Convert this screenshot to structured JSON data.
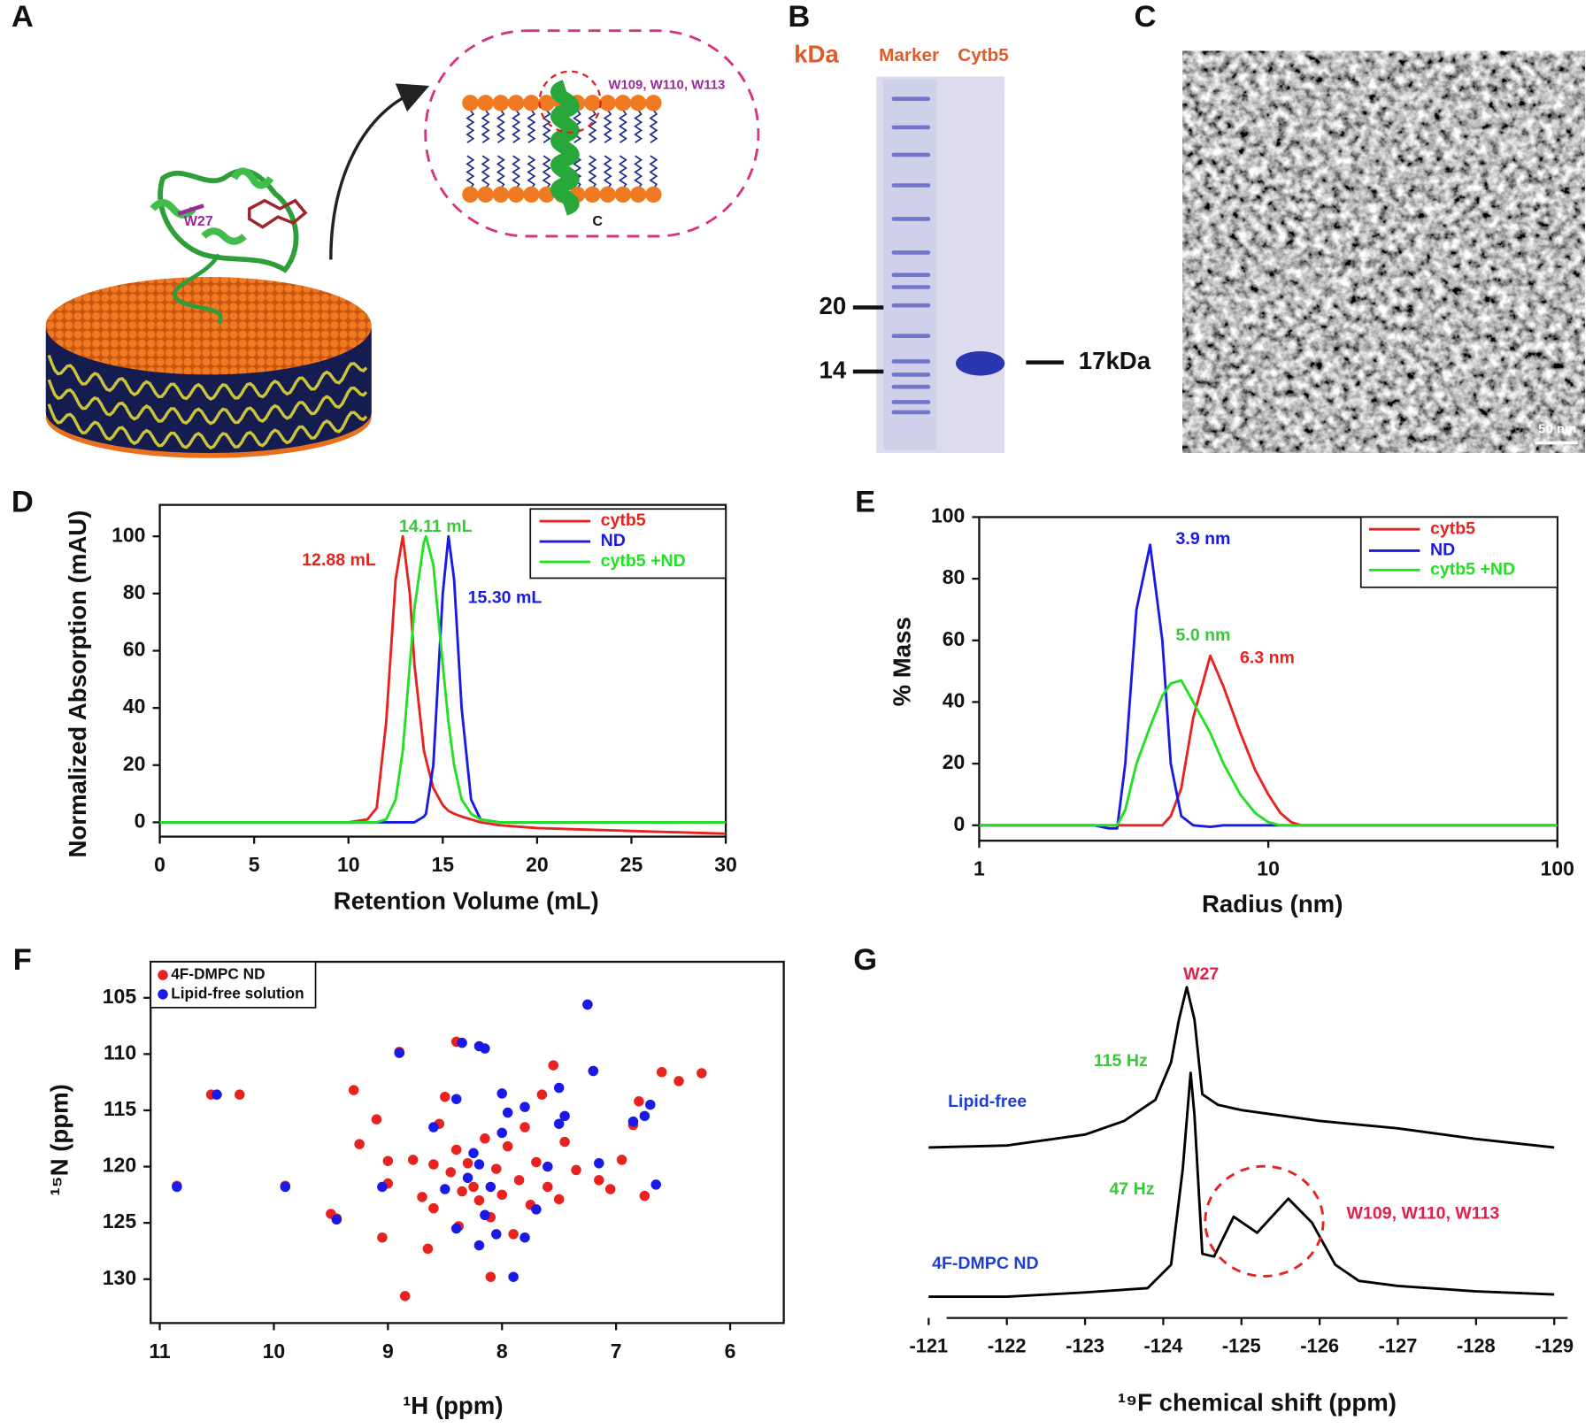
{
  "panel_labels": [
    "A",
    "B",
    "C",
    "D",
    "E",
    "F",
    "G"
  ],
  "panel_a": {
    "labels": [
      "W27",
      "W109, W110, W113",
      "C"
    ]
  },
  "panel_b": {
    "unit": "kDa",
    "lanes": [
      "Marker",
      "Cytb5"
    ],
    "markers": [
      20,
      14
    ],
    "band": "17kDa"
  },
  "panel_c": {
    "scale_bar": "50 nm"
  },
  "chart_data": [
    {
      "type": "line",
      "x_label": "Retention Volume (mL)",
      "y_label": "Normalized Absorption (mAU)",
      "x": [
        0,
        5,
        10,
        11,
        11.5,
        12,
        12.5,
        12.88,
        13.25,
        13.5,
        14,
        14.11,
        14.5,
        15,
        15.3,
        15.6,
        16,
        16.5,
        17,
        18,
        20,
        25,
        30
      ],
      "xlim": [
        0,
        30
      ],
      "xticks": [
        0,
        5,
        10,
        15,
        20,
        25,
        30
      ],
      "ylim": [
        -5,
        111
      ],
      "yticks": [
        0,
        20,
        40,
        60,
        80,
        100
      ],
      "legend": "upper right",
      "series": [
        {
          "name": "cytb5",
          "color": "#e8221e",
          "values": [
            0,
            0,
            0,
            1,
            5,
            35,
            85,
            100,
            80,
            55,
            25,
            22,
            12,
            6,
            4,
            3,
            2,
            1,
            0,
            -1,
            -2,
            -3,
            -4
          ]
        },
        {
          "name": "ND",
          "color": "#1a1ae6",
          "values": [
            0,
            0,
            0,
            0,
            0,
            0,
            0,
            0,
            0,
            0,
            2,
            3,
            20,
            80,
            100,
            85,
            40,
            8,
            1,
            0,
            0,
            0,
            0
          ]
        },
        {
          "name": "cytb5 +ND",
          "color": "#22e022",
          "values": [
            0,
            0,
            0,
            0,
            0,
            1,
            8,
            25,
            55,
            75,
            98,
            100,
            90,
            55,
            35,
            20,
            8,
            3,
            1,
            0,
            0,
            0,
            0
          ]
        }
      ],
      "annotations": [
        {
          "text": "12.88 mL",
          "color": "#e8221e"
        },
        {
          "text": "14.11 mL",
          "color": "#3cc63c"
        },
        {
          "text": "15.30 mL",
          "color": "#1a1ae6"
        }
      ]
    },
    {
      "type": "line",
      "x_label": "Radius (nm)",
      "y_label": "% Mass",
      "xscale": "log",
      "x": [
        1,
        2.5,
        2.8,
        3,
        3.2,
        3.5,
        3.9,
        4.3,
        4.6,
        5,
        5.5,
        6.3,
        7,
        8,
        9,
        10,
        11,
        12,
        13,
        15,
        20,
        100
      ],
      "xlim": [
        1,
        100
      ],
      "xticks": [
        1,
        10,
        100
      ],
      "ylim": [
        -5,
        100
      ],
      "yticks": [
        0,
        20,
        40,
        60,
        80,
        100
      ],
      "legend": "upper right",
      "series": [
        {
          "name": "cytb5",
          "color": "#e8221e",
          "values": [
            0,
            0,
            0,
            0,
            0,
            0,
            0,
            0,
            3,
            12,
            35,
            55,
            45,
            30,
            18,
            10,
            4,
            1,
            0,
            0,
            0,
            0
          ]
        },
        {
          "name": "ND",
          "color": "#1a1ae6",
          "values": [
            0,
            0,
            -1,
            -1,
            20,
            70,
            91,
            60,
            20,
            3,
            0,
            -0.5,
            0,
            0,
            0,
            0,
            0,
            0,
            0,
            0,
            0,
            0
          ]
        },
        {
          "name": "cytb5 +ND",
          "color": "#22e022",
          "values": [
            0,
            0,
            0,
            0,
            5,
            20,
            32,
            42,
            46,
            47,
            40,
            30,
            20,
            10,
            4,
            1,
            0,
            0,
            0,
            0,
            0,
            0
          ]
        }
      ],
      "annotations": [
        {
          "text": "3.9 nm",
          "color": "#1a1ae6"
        },
        {
          "text": "5.0 nm",
          "color": "#3cc63c"
        },
        {
          "text": "6.3 nm",
          "color": "#e8221e"
        }
      ]
    },
    {
      "type": "scatter",
      "x_label": "¹H (ppm)",
      "y_label": "¹⁵N (ppm)",
      "xlim": [
        11.08,
        5.53
      ],
      "xticks": [
        11,
        10,
        9,
        8,
        7,
        6
      ],
      "ylim": [
        133.9,
        101.8
      ],
      "yticks": [
        105,
        110,
        115,
        120,
        125,
        130
      ],
      "legend": "upper left",
      "series": [
        {
          "name": "4F-DMPC ND",
          "color": "#e8221e",
          "x": [
            10.85,
            10.3,
            10.55,
            9.9,
            9.5,
            9.45,
            9.3,
            9.25,
            9.1,
            9.05,
            9.0,
            8.9,
            8.85,
            8.78,
            8.7,
            8.65,
            8.6,
            8.55,
            8.5,
            8.45,
            8.4,
            8.38,
            8.35,
            8.3,
            8.25,
            8.2,
            8.15,
            8.1,
            8.05,
            8.0,
            7.95,
            7.9,
            7.85,
            7.8,
            7.75,
            7.7,
            7.6,
            7.55,
            7.5,
            7.45,
            7.35,
            7.25,
            7.2,
            7.15,
            7.05,
            6.95,
            6.85,
            6.8,
            6.75,
            6.6,
            6.45,
            6.25,
            8.4,
            8.1,
            7.65,
            8.6,
            9.0
          ],
          "values": [
            121.7,
            113.6,
            113.6,
            121.7,
            124.2,
            124.6,
            113.2,
            118,
            115.8,
            126.3,
            121.5,
            109.8,
            131.5,
            119.4,
            122.7,
            127.3,
            123.7,
            116.2,
            113.8,
            120.5,
            118.5,
            125.3,
            122.2,
            119.7,
            121.8,
            123,
            117.5,
            124.5,
            120.2,
            122.5,
            118.2,
            126,
            121.2,
            116.5,
            123.4,
            119.6,
            121.8,
            111,
            122.9,
            117.8,
            120.3,
            105.6,
            111.5,
            121.2,
            122,
            119.4,
            116.3,
            114.2,
            122.6,
            111.6,
            112.4,
            111.7,
            108.9,
            129.8,
            113.6,
            119.8,
            119.5
          ]
        },
        {
          "name": "Lipid-free solution",
          "color": "#1a1ae6",
          "x": [
            10.85,
            10.5,
            9.9,
            9.45,
            8.9,
            8.2,
            8.15,
            8.35,
            8.4,
            8.0,
            7.95,
            7.8,
            7.5,
            7.45,
            7.2,
            7.25,
            6.85,
            6.7,
            6.75,
            6.65,
            8.2,
            8.05,
            7.8,
            7.9,
            8.3,
            8.1,
            8.25,
            8.0,
            8.15,
            7.6,
            7.5,
            7.15,
            8.5,
            8.6,
            9.05,
            7.7,
            8.2,
            8.4
          ],
          "values": [
            121.8,
            113.6,
            121.8,
            124.7,
            109.9,
            109.3,
            109.5,
            109,
            114,
            113.5,
            115.2,
            114.7,
            113,
            115.5,
            111.5,
            105.6,
            116,
            114.5,
            115.5,
            121.6,
            127,
            126,
            126.3,
            129.8,
            121,
            121.8,
            118.8,
            117,
            124.3,
            120,
            116.2,
            119.7,
            122,
            116.5,
            121.8,
            123.8,
            119.8,
            125.5
          ]
        }
      ]
    },
    {
      "type": "line",
      "x_label": "¹⁹F chemical shift (ppm)",
      "show_y_axis": false,
      "legend": "inline",
      "xlim": [
        -121.23,
        -129.17
      ],
      "xticks": [
        -121,
        -122,
        -123,
        -124,
        -125,
        -126,
        -127,
        -128,
        -129
      ],
      "ylim": [
        0,
        100
      ],
      "series": [
        {
          "name": "Lipid-free",
          "color": "#000000",
          "x": [
            -121,
            -122,
            -123,
            -123.5,
            -123.9,
            -124.1,
            -124.2,
            -124.3,
            -124.4,
            -124.5,
            -124.7,
            -125,
            -126,
            -127,
            -128,
            -129
          ],
          "values": [
            50,
            50.6,
            53.8,
            57.8,
            64,
            75,
            87.5,
            97,
            87.5,
            65.6,
            62.5,
            61,
            57.8,
            55.6,
            52.5,
            50
          ]
        },
        {
          "name": "4F-DMPC ND",
          "color": "#000000",
          "x": [
            -121,
            -122,
            -123,
            -123.8,
            -124.1,
            -124.25,
            -124.35,
            -124.4,
            -124.5,
            -124.65,
            -124.9,
            -125.2,
            -125.6,
            -125.9,
            -126.2,
            -126.5,
            -127,
            -128,
            -129
          ],
          "values": [
            6.25,
            6.25,
            7.5,
            8.75,
            15.6,
            43.8,
            71.9,
            59.4,
            18.8,
            18,
            29.7,
            25,
            35,
            28,
            15.6,
            10.9,
            9.4,
            7.8,
            6.9
          ]
        }
      ],
      "annotations": [
        {
          "text": "W27",
          "color": "#e0204a"
        },
        {
          "text": "115 Hz",
          "color": "#3cc63c"
        },
        {
          "text": "47 Hz",
          "color": "#3cc63c"
        },
        {
          "text": "W109, W110, W113",
          "color": "#e0204a"
        }
      ]
    }
  ]
}
